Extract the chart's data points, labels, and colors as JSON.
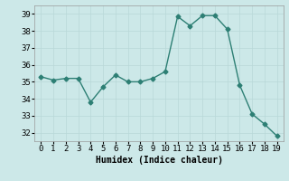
{
  "x": [
    0,
    1,
    2,
    3,
    4,
    5,
    6,
    7,
    8,
    9,
    10,
    11,
    12,
    13,
    14,
    15,
    16,
    17,
    18,
    19
  ],
  "y": [
    35.3,
    35.1,
    35.2,
    35.2,
    33.8,
    34.7,
    35.4,
    35.0,
    35.0,
    35.2,
    35.6,
    38.85,
    38.3,
    38.9,
    38.9,
    38.1,
    34.8,
    33.1,
    32.5,
    31.8
  ],
  "line_color": "#2d7f74",
  "marker": "D",
  "marker_size": 2.5,
  "bg_color": "#cce8e8",
  "grid_color": "#b8d8d8",
  "xlabel": "Humidex (Indice chaleur)",
  "ylim": [
    31.5,
    39.5
  ],
  "xlim": [
    -0.5,
    19.5
  ],
  "yticks": [
    32,
    33,
    34,
    35,
    36,
    37,
    38,
    39
  ],
  "xticks": [
    0,
    1,
    2,
    3,
    4,
    5,
    6,
    7,
    8,
    9,
    10,
    11,
    12,
    13,
    14,
    15,
    16,
    17,
    18,
    19
  ],
  "xlabel_fontsize": 7,
  "tick_fontsize": 6.5
}
